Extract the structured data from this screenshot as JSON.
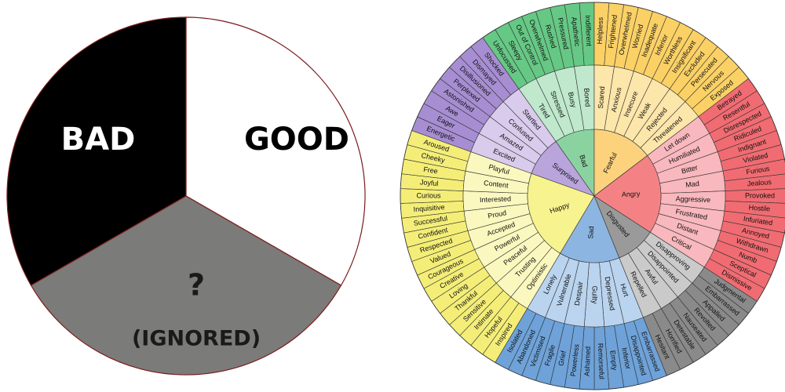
{
  "pie": {
    "segments": [
      {
        "label": "BAD"
      },
      {
        "label": "GOOD"
      },
      {
        "label": "?",
        "sublabel": "(IGNORED)"
      }
    ]
  },
  "wheel": {
    "emotions": [
      {
        "name": "Bad",
        "feelings": [
          {
            "name": "Tired",
            "words": [
              "Unfocussed",
              "Sleepy"
            ]
          },
          {
            "name": "Stressed",
            "words": [
              "Out of Control",
              "Overwhelmed"
            ]
          },
          {
            "name": "Busy",
            "words": [
              "Rushed",
              "Pressured"
            ]
          },
          {
            "name": "Bored",
            "words": [
              "Apathetic",
              "Indifferent"
            ]
          }
        ]
      },
      {
        "name": "Fearful",
        "feelings": [
          {
            "name": "Scared",
            "words": [
              "Helpless",
              "Frightened"
            ]
          },
          {
            "name": "Anxious",
            "words": [
              "Overwhelmed",
              "Worried"
            ]
          },
          {
            "name": "Insecure",
            "words": [
              "Inadequate",
              "Inferior"
            ]
          },
          {
            "name": "Weak",
            "words": [
              "Worthless",
              "Insignificant"
            ]
          },
          {
            "name": "Rejected",
            "words": [
              "Excluded",
              "Persecuted"
            ]
          },
          {
            "name": "Threatened",
            "words": [
              "Nervous",
              "Exposed"
            ]
          }
        ]
      },
      {
        "name": "Angry",
        "feelings": [
          {
            "name": "Let down",
            "words": [
              "Betrayed",
              "Resentful"
            ]
          },
          {
            "name": "Humiliated",
            "words": [
              "Disrespected",
              "Ridiculed"
            ]
          },
          {
            "name": "Bitter",
            "words": [
              "Indignant",
              "Violated"
            ]
          },
          {
            "name": "Mad",
            "words": [
              "Furious",
              "Jealous"
            ]
          },
          {
            "name": "Aggressive",
            "words": [
              "Provoked",
              "Hostile"
            ]
          },
          {
            "name": "Frustrated",
            "words": [
              "Infuriated",
              "Annoyed"
            ]
          },
          {
            "name": "Distant",
            "words": [
              "Withdrawn",
              "Numb"
            ]
          },
          {
            "name": "Critical",
            "words": [
              "Sceptical",
              "Dismissive"
            ]
          }
        ]
      },
      {
        "name": "Disgusted",
        "feelings": [
          {
            "name": "Disapproving",
            "words": [
              "Judgmental",
              "Embarrassed"
            ]
          },
          {
            "name": "Disappointed",
            "words": [
              "Appalled",
              "Revolted"
            ]
          },
          {
            "name": "Awful",
            "words": [
              "Nauseated",
              "Detestable"
            ]
          },
          {
            "name": "Repelled",
            "words": [
              "Horrified",
              "Hesitant"
            ]
          }
        ]
      },
      {
        "name": "Sad",
        "feelings": [
          {
            "name": "Hurt",
            "words": [
              "Embarrassed",
              "Disappointed"
            ]
          },
          {
            "name": "Depressed",
            "words": [
              "Inferior",
              "Empty"
            ]
          },
          {
            "name": "Guilty",
            "words": [
              "Remorseful",
              "Ashamed"
            ]
          },
          {
            "name": "Despair",
            "words": [
              "Powerless",
              "Grief"
            ]
          },
          {
            "name": "Vulnerable",
            "words": [
              "Fragile",
              "Victimised"
            ]
          },
          {
            "name": "Lonely",
            "words": [
              "Abandoned",
              "Isolated"
            ]
          }
        ]
      },
      {
        "name": "Happy",
        "feelings": [
          {
            "name": "Optimistic",
            "words": [
              "Inspired",
              "Hopeful"
            ]
          },
          {
            "name": "Trusting",
            "words": [
              "Intimate",
              "Sensitive"
            ]
          },
          {
            "name": "Peaceful",
            "words": [
              "Thankful",
              "Loving"
            ]
          },
          {
            "name": "Powerful",
            "words": [
              "Creative",
              "Courageous"
            ]
          },
          {
            "name": "Accepted",
            "words": [
              "Valued",
              "Respected"
            ]
          },
          {
            "name": "Proud",
            "words": [
              "Confident",
              "Successful"
            ]
          },
          {
            "name": "Interested",
            "words": [
              "Inquisitive",
              "Curious"
            ]
          },
          {
            "name": "Content",
            "words": [
              "Joyful",
              "Free"
            ]
          },
          {
            "name": "Playful",
            "words": [
              "Cheeky",
              "Aroused"
            ]
          }
        ]
      },
      {
        "name": "Surprised",
        "feelings": [
          {
            "name": "Excited",
            "words": [
              "Energetic",
              "Eager"
            ]
          },
          {
            "name": "Amazed",
            "words": [
              "Awe",
              "Astonished"
            ]
          },
          {
            "name": "Confused",
            "words": [
              "Perplexed",
              "Disillusioned"
            ]
          },
          {
            "name": "Startled",
            "words": [
              "Dismayed",
              "Shocked"
            ]
          }
        ]
      }
    ]
  }
}
